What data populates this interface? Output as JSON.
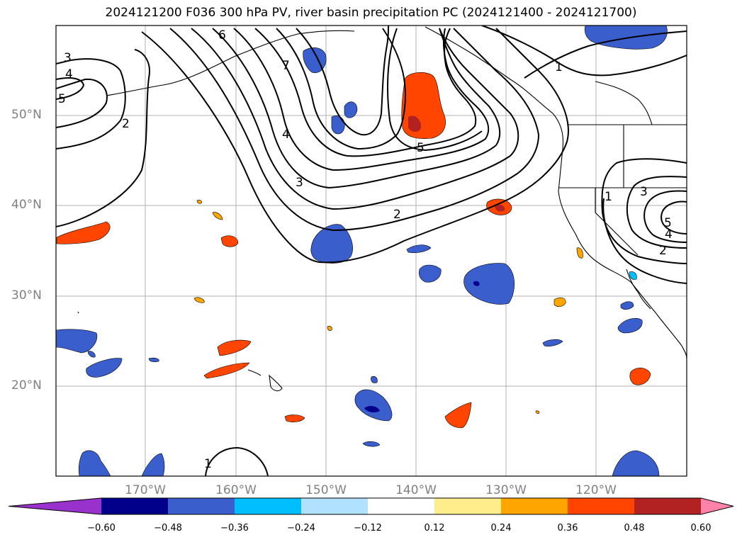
{
  "title": "2024121200 F036 300 hPa PV, river basin precipitation PC (2024121400 - 2024121700)",
  "lat_labels": [
    "50°N",
    "40°N",
    "30°N",
    "20°N"
  ],
  "lon_labels": [
    "170°W",
    "160°W",
    "150°W",
    "140°W",
    "130°W",
    "120°W"
  ],
  "contour_labels": [
    "3",
    "4",
    "5",
    "2",
    "6",
    "7",
    "4",
    "3",
    "5",
    "2",
    "1",
    "1",
    "3",
    "5",
    "4",
    "2",
    "1"
  ],
  "colorbar": {
    "ticks": [
      "−0.60",
      "−0.48",
      "−0.36",
      "−0.24",
      "−0.12",
      "0.12",
      "0.24",
      "0.36",
      "0.48",
      "0.60"
    ],
    "colors": [
      "#9932cc",
      "#00008b",
      "#3a5fcd",
      "#00bfff",
      "#b0e2ff",
      "#ffffff",
      "#ffec8b",
      "#ffa500",
      "#ff4500",
      "#b22222",
      "#ff82ab"
    ]
  }
}
